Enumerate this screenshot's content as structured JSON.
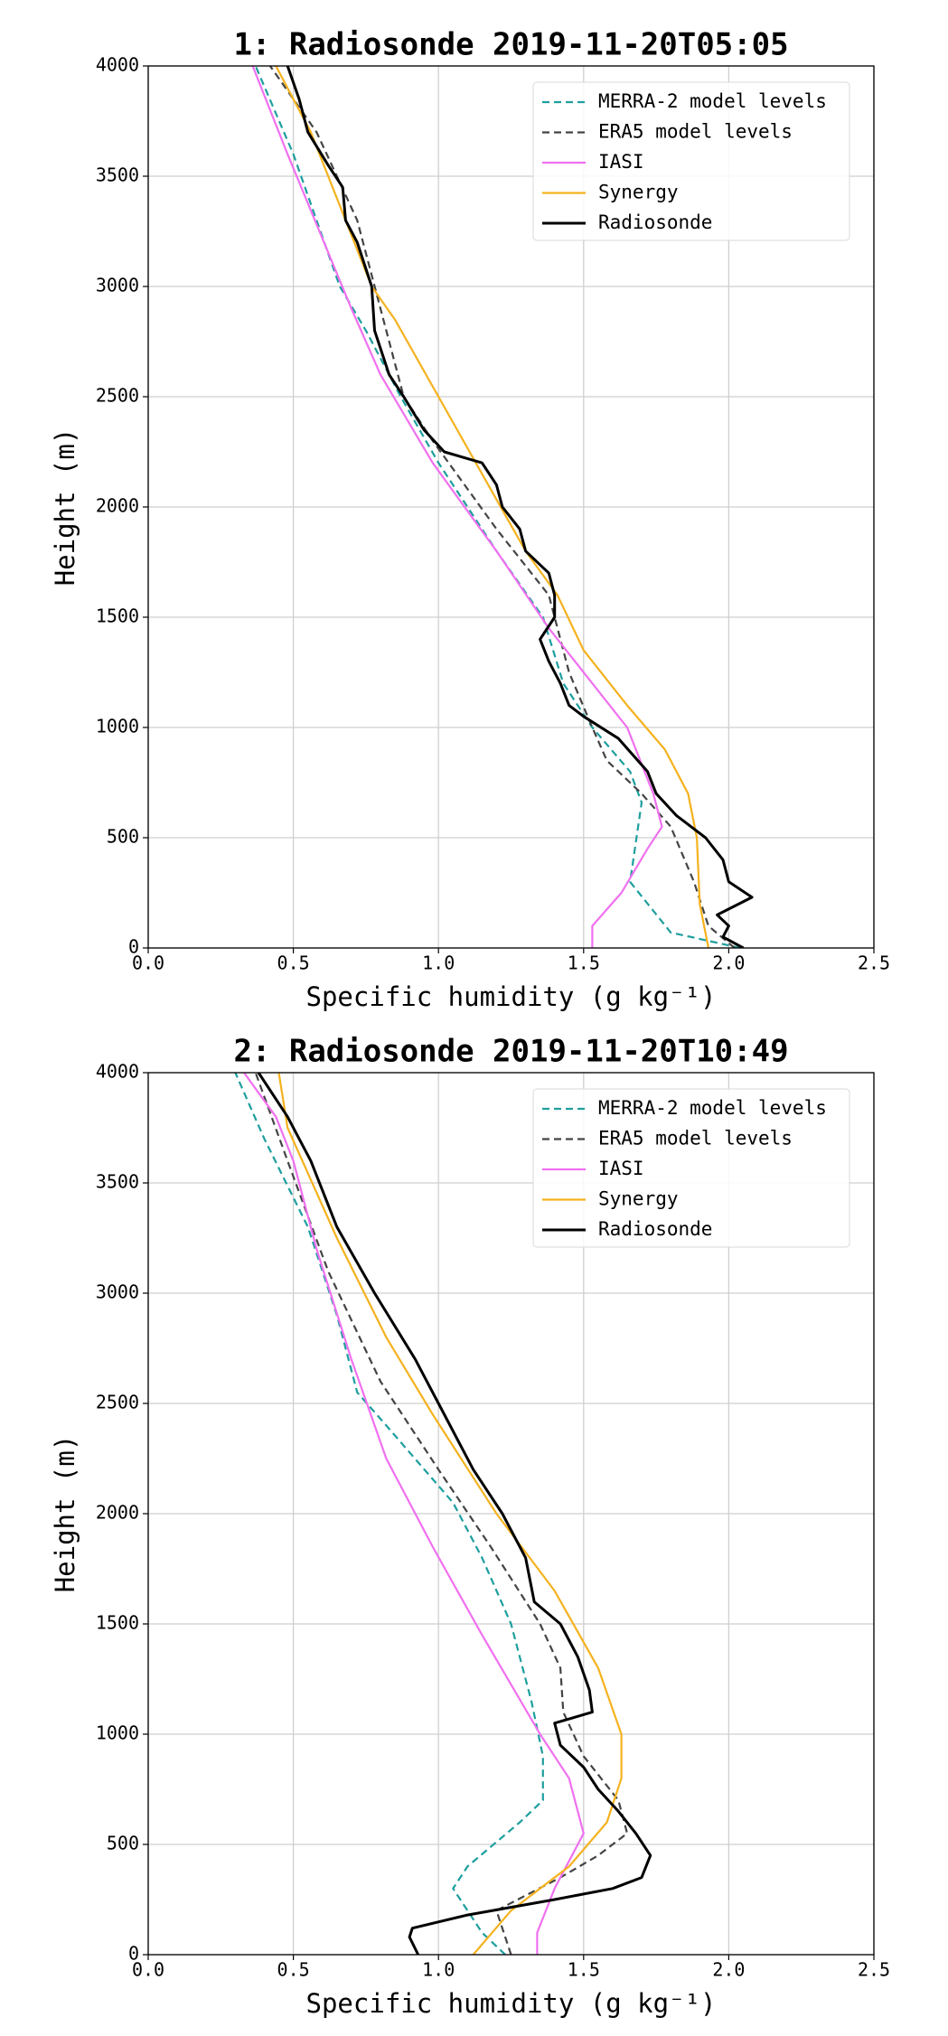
{
  "chart_data": [
    {
      "type": "line",
      "title": "1: Radiosonde 2019-11-20T05:05",
      "xlabel": "Specific humidity (g kg⁻¹)",
      "ylabel": "Height (m)",
      "xlim": [
        0,
        2.5
      ],
      "ylim": [
        0,
        4000
      ],
      "xticks": [
        {
          "value": 0,
          "label": "0.0"
        },
        0.5,
        {
          "value": 1,
          "label": "1.0"
        },
        1.5,
        {
          "value": 2,
          "label": "2.0"
        },
        2.5
      ],
      "yticks": [
        0,
        500,
        1000,
        1500,
        2000,
        2500,
        3000,
        3500,
        4000
      ],
      "grid": true,
      "legend": "upper right",
      "series": [
        {
          "name": "MERRA-2 model levels",
          "color": "#1f9e9e",
          "dash": true,
          "x": [
            2.04,
            1.8,
            1.66,
            1.7,
            1.66,
            1.53,
            1.43,
            1.36,
            1.2,
            1.0,
            0.87,
            0.75,
            0.66,
            0.5,
            0.37
          ],
          "y": [
            0,
            70,
            300,
            660,
            800,
            1000,
            1200,
            1500,
            1800,
            2200,
            2500,
            2800,
            3000,
            3600,
            4000
          ]
        },
        {
          "name": "ERA5 model levels",
          "color": "#444444",
          "dash": true,
          "x": [
            2.02,
            1.93,
            1.88,
            1.8,
            1.7,
            1.58,
            1.53,
            1.45,
            1.38,
            1.2,
            0.98,
            0.88,
            0.8,
            0.72,
            0.58,
            0.42
          ],
          "y": [
            0,
            100,
            300,
            550,
            700,
            850,
            1000,
            1250,
            1600,
            1900,
            2300,
            2500,
            2900,
            3300,
            3700,
            4000
          ]
        },
        {
          "name": "IASI",
          "color": "#f070f0",
          "dash": false,
          "x": [
            1.53,
            1.53,
            1.63,
            1.72,
            1.77,
            1.74,
            1.65,
            1.53,
            1.38,
            1.2,
            0.98,
            0.8,
            0.7,
            0.48,
            0.36
          ],
          "y": [
            0,
            100,
            250,
            450,
            550,
            700,
            1000,
            1200,
            1450,
            1800,
            2200,
            2600,
            2900,
            3600,
            4000
          ]
        },
        {
          "name": "Synergy",
          "color": "#f5b21e",
          "dash": false,
          "x": [
            1.93,
            1.9,
            1.89,
            1.86,
            1.78,
            1.65,
            1.5,
            1.41,
            1.3,
            1.15,
            1.0,
            0.85,
            0.77,
            0.65,
            0.56,
            0.44
          ],
          "y": [
            0,
            200,
            500,
            700,
            900,
            1100,
            1350,
            1600,
            1800,
            2150,
            2500,
            2850,
            3000,
            3400,
            3700,
            4000
          ]
        },
        {
          "name": "Radiosonde",
          "color": "#000000",
          "dash": false,
          "x": [
            2.05,
            1.98,
            2.0,
            1.96,
            2.08,
            2.0,
            1.98,
            1.92,
            1.82,
            1.75,
            1.72,
            1.62,
            1.5,
            1.45,
            1.42,
            1.38,
            1.35,
            1.4,
            1.4,
            1.38,
            1.3,
            1.28,
            1.22,
            1.2,
            1.15,
            1.02,
            0.95,
            0.88,
            0.83,
            0.78,
            0.77,
            0.72,
            0.68,
            0.67,
            0.62,
            0.55,
            0.52,
            0.48
          ],
          "y": [
            0,
            50,
            100,
            150,
            230,
            300,
            400,
            500,
            600,
            700,
            800,
            950,
            1050,
            1100,
            1200,
            1300,
            1400,
            1500,
            1600,
            1700,
            1800,
            1900,
            2000,
            2100,
            2200,
            2250,
            2350,
            2500,
            2600,
            2800,
            3000,
            3200,
            3300,
            3450,
            3550,
            3700,
            3850,
            4000
          ]
        }
      ]
    },
    {
      "type": "line",
      "title": "2: Radiosonde 2019-11-20T10:49",
      "xlabel": "Specific humidity (g kg⁻¹)",
      "ylabel": "Height (m)",
      "xlim": [
        0,
        2.5
      ],
      "ylim": [
        0,
        4000
      ],
      "xticks": [
        {
          "value": 0,
          "label": "0.0"
        },
        0.5,
        {
          "value": 1,
          "label": "1.0"
        },
        1.5,
        {
          "value": 2,
          "label": "2.0"
        },
        2.5
      ],
      "yticks": [
        0,
        500,
        1000,
        1500,
        2000,
        2500,
        3000,
        3500,
        4000
      ],
      "grid": true,
      "legend": "upper right",
      "series": [
        {
          "name": "MERRA-2 model levels",
          "color": "#1f9e9e",
          "dash": true,
          "x": [
            1.23,
            1.15,
            1.05,
            1.1,
            1.28,
            1.36,
            1.36,
            1.32,
            1.25,
            1.15,
            1.05,
            0.82,
            0.72,
            0.65,
            0.55,
            0.4,
            0.3
          ],
          "y": [
            0,
            100,
            300,
            400,
            600,
            700,
            900,
            1150,
            1500,
            1800,
            2050,
            2400,
            2550,
            2900,
            3300,
            3700,
            4000
          ]
        },
        {
          "name": "ERA5 model levels",
          "color": "#444444",
          "dash": true,
          "x": [
            1.25,
            1.2,
            1.42,
            1.55,
            1.65,
            1.62,
            1.5,
            1.43,
            1.42,
            1.35,
            1.18,
            1.0,
            0.8,
            0.62,
            0.48,
            0.37
          ],
          "y": [
            0,
            200,
            350,
            450,
            550,
            700,
            900,
            1100,
            1300,
            1500,
            1850,
            2200,
            2600,
            3100,
            3600,
            4000
          ]
        },
        {
          "name": "IASI",
          "color": "#f070f0",
          "dash": false,
          "x": [
            1.34,
            1.34,
            1.4,
            1.5,
            1.45,
            1.35,
            1.15,
            0.98,
            0.82,
            0.7,
            0.58,
            0.5,
            0.44,
            0.33
          ],
          "y": [
            0,
            100,
            300,
            550,
            800,
            1000,
            1450,
            1850,
            2250,
            2700,
            3200,
            3600,
            3800,
            4000
          ]
        },
        {
          "name": "Synergy",
          "color": "#f5b21e",
          "dash": false,
          "x": [
            1.12,
            1.25,
            1.45,
            1.58,
            1.63,
            1.63,
            1.55,
            1.4,
            1.2,
            0.98,
            0.82,
            0.65,
            0.48,
            0.45
          ],
          "y": [
            0,
            200,
            400,
            600,
            800,
            1000,
            1300,
            1650,
            2000,
            2450,
            2800,
            3250,
            3750,
            4000
          ]
        },
        {
          "name": "Radiosonde",
          "color": "#000000",
          "dash": false,
          "x": [
            0.93,
            0.9,
            0.91,
            1.1,
            1.4,
            1.6,
            1.7,
            1.73,
            1.68,
            1.62,
            1.55,
            1.5,
            1.42,
            1.4,
            1.53,
            1.52,
            1.48,
            1.42,
            1.33,
            1.3,
            1.22,
            1.12,
            1.0,
            0.92,
            0.78,
            0.65,
            0.56,
            0.48,
            0.38
          ],
          "y": [
            0,
            80,
            120,
            180,
            250,
            300,
            350,
            450,
            550,
            650,
            750,
            850,
            950,
            1050,
            1100,
            1200,
            1350,
            1500,
            1600,
            1800,
            2000,
            2200,
            2500,
            2700,
            3000,
            3300,
            3600,
            3800,
            4000
          ]
        }
      ]
    }
  ]
}
